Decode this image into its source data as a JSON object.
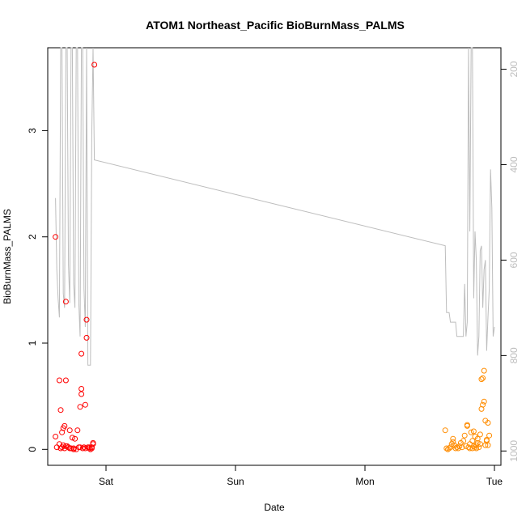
{
  "chart_data": {
    "type": "scatter",
    "title": "ATOM1 Northeast_Pacific BioBurnMass_PALMS",
    "xlabel": "Date",
    "ylabel": "BioBurnMass_PALMS",
    "x_ticks": [
      {
        "pos": 0.0,
        "label": "Sat"
      },
      {
        "pos": 1.0,
        "label": "Sun"
      },
      {
        "pos": 2.0,
        "label": "Mon"
      },
      {
        "pos": 3.0,
        "label": "Tue"
      }
    ],
    "y_ticks": [
      0,
      1,
      2,
      3
    ],
    "y_right_ticks": [
      200,
      400,
      600,
      800,
      1000
    ],
    "xlim": [
      -0.45,
      3.05
    ],
    "ylim": [
      -0.15,
      3.78
    ],
    "y_right_lim": [
      155,
      1030
    ],
    "colors": {
      "series_red": "#ff0000",
      "series_orange": "#ff8c00",
      "altitude_line": "#bdbdbd"
    },
    "series": [
      {
        "color": "#ff0000",
        "points": [
          [
            -0.39,
            2.0
          ],
          [
            -0.39,
            0.12
          ],
          [
            -0.38,
            0.02
          ],
          [
            -0.36,
            0.65
          ],
          [
            -0.36,
            0.05
          ],
          [
            -0.35,
            0.01
          ],
          [
            -0.35,
            0.37
          ],
          [
            -0.34,
            0.16
          ],
          [
            -0.34,
            0.02
          ],
          [
            -0.33,
            0.04
          ],
          [
            -0.33,
            0.2
          ],
          [
            -0.32,
            0.22
          ],
          [
            -0.32,
            0.01
          ],
          [
            -0.31,
            0.65
          ],
          [
            -0.31,
            1.39
          ],
          [
            -0.31,
            0.03
          ],
          [
            -0.3,
            0.03
          ],
          [
            -0.29,
            0.02
          ],
          [
            -0.28,
            0.18
          ],
          [
            -0.28,
            0.01
          ],
          [
            -0.27,
            0.01
          ],
          [
            -0.26,
            0.11
          ],
          [
            -0.25,
            0.0
          ],
          [
            -0.25,
            0.01
          ],
          [
            -0.24,
            0.1
          ],
          [
            -0.23,
            0.0
          ],
          [
            -0.22,
            0.18
          ],
          [
            -0.21,
            0.02
          ],
          [
            -0.2,
            0.02
          ],
          [
            -0.2,
            0.4
          ],
          [
            -0.19,
            0.9
          ],
          [
            -0.19,
            0.52
          ],
          [
            -0.19,
            0.57
          ],
          [
            -0.18,
            0.01
          ],
          [
            -0.17,
            0.02
          ],
          [
            -0.16,
            0.42
          ],
          [
            -0.16,
            0.01
          ],
          [
            -0.15,
            1.05
          ],
          [
            -0.15,
            1.22
          ],
          [
            -0.14,
            0.02
          ],
          [
            -0.13,
            0.01
          ],
          [
            -0.13,
            0.02
          ],
          [
            -0.12,
            0.0
          ],
          [
            -0.11,
            0.01
          ],
          [
            -0.11,
            0.02
          ],
          [
            -0.1,
            0.05
          ],
          [
            -0.1,
            0.06
          ],
          [
            -0.09,
            3.62
          ]
        ]
      },
      {
        "color": "#ff8c00",
        "points": [
          [
            2.62,
            0.18
          ],
          [
            2.63,
            0.01
          ],
          [
            2.64,
            0.0
          ],
          [
            2.65,
            0.01
          ],
          [
            2.66,
            0.02
          ],
          [
            2.67,
            0.05
          ],
          [
            2.68,
            0.07
          ],
          [
            2.68,
            0.1
          ],
          [
            2.69,
            0.04
          ],
          [
            2.7,
            0.01
          ],
          [
            2.71,
            0.02
          ],
          [
            2.72,
            0.01
          ],
          [
            2.73,
            0.03
          ],
          [
            2.74,
            0.06
          ],
          [
            2.75,
            0.02
          ],
          [
            2.76,
            0.08
          ],
          [
            2.77,
            0.13
          ],
          [
            2.78,
            0.03
          ],
          [
            2.79,
            0.22
          ],
          [
            2.79,
            0.23
          ],
          [
            2.8,
            0.02
          ],
          [
            2.81,
            0.01
          ],
          [
            2.81,
            0.05
          ],
          [
            2.82,
            0.16
          ],
          [
            2.83,
            0.01
          ],
          [
            2.83,
            0.08
          ],
          [
            2.84,
            0.17
          ],
          [
            2.84,
            0.03
          ],
          [
            2.85,
            0.02
          ],
          [
            2.85,
            0.12
          ],
          [
            2.86,
            0.01
          ],
          [
            2.86,
            0.04
          ],
          [
            2.87,
            0.06
          ],
          [
            2.87,
            0.1
          ],
          [
            2.88,
            0.02
          ],
          [
            2.89,
            0.14
          ],
          [
            2.89,
            0.05
          ],
          [
            2.9,
            0.38
          ],
          [
            2.9,
            0.66
          ],
          [
            2.91,
            0.67
          ],
          [
            2.91,
            0.42
          ],
          [
            2.92,
            0.45
          ],
          [
            2.92,
            0.74
          ],
          [
            2.93,
            0.27
          ],
          [
            2.93,
            0.04
          ],
          [
            2.94,
            0.08
          ],
          [
            2.94,
            0.09
          ],
          [
            2.95,
            0.25
          ],
          [
            2.95,
            0.04
          ],
          [
            2.96,
            0.13
          ]
        ]
      }
    ],
    "altitude_line": {
      "axis": "right",
      "points": [
        [
          -0.39,
          470
        ],
        [
          -0.38,
          620
        ],
        [
          -0.37,
          680
        ],
        [
          -0.36,
          720
        ],
        [
          -0.35,
          150
        ],
        [
          -0.34,
          150
        ],
        [
          -0.33,
          670
        ],
        [
          -0.32,
          700
        ],
        [
          -0.31,
          150
        ],
        [
          -0.3,
          150
        ],
        [
          -0.29,
          610
        ],
        [
          -0.28,
          690
        ],
        [
          -0.27,
          150
        ],
        [
          -0.26,
          150
        ],
        [
          -0.25,
          650
        ],
        [
          -0.24,
          700
        ],
        [
          -0.23,
          150
        ],
        [
          -0.22,
          150
        ],
        [
          -0.21,
          690
        ],
        [
          -0.2,
          760
        ],
        [
          -0.19,
          150
        ],
        [
          -0.18,
          150
        ],
        [
          -0.17,
          660
        ],
        [
          -0.16,
          740
        ],
        [
          -0.15,
          150
        ],
        [
          -0.14,
          820
        ],
        [
          -0.13,
          820
        ],
        [
          -0.12,
          820
        ],
        [
          -0.11,
          340
        ],
        [
          -0.1,
          150
        ],
        [
          -0.09,
          390
        ],
        [
          2.62,
          570
        ],
        [
          2.63,
          710
        ],
        [
          2.64,
          710
        ],
        [
          2.65,
          710
        ],
        [
          2.66,
          730
        ],
        [
          2.67,
          730
        ],
        [
          2.68,
          730
        ],
        [
          2.69,
          730
        ],
        [
          2.7,
          730
        ],
        [
          2.71,
          760
        ],
        [
          2.72,
          760
        ],
        [
          2.73,
          760
        ],
        [
          2.74,
          760
        ],
        [
          2.75,
          760
        ],
        [
          2.76,
          760
        ],
        [
          2.77,
          650
        ],
        [
          2.78,
          760
        ],
        [
          2.79,
          730
        ],
        [
          2.8,
          150
        ],
        [
          2.81,
          540
        ],
        [
          2.82,
          150
        ],
        [
          2.83,
          150
        ],
        [
          2.84,
          680
        ],
        [
          2.85,
          540
        ],
        [
          2.86,
          600
        ],
        [
          2.87,
          800
        ],
        [
          2.88,
          760
        ],
        [
          2.89,
          580
        ],
        [
          2.9,
          570
        ],
        [
          2.91,
          700
        ],
        [
          2.92,
          620
        ],
        [
          2.93,
          600
        ],
        [
          2.94,
          790
        ],
        [
          2.95,
          720
        ],
        [
          2.96,
          660
        ],
        [
          2.97,
          410
        ],
        [
          2.98,
          490
        ],
        [
          2.99,
          760
        ],
        [
          3.0,
          740
        ]
      ]
    }
  }
}
